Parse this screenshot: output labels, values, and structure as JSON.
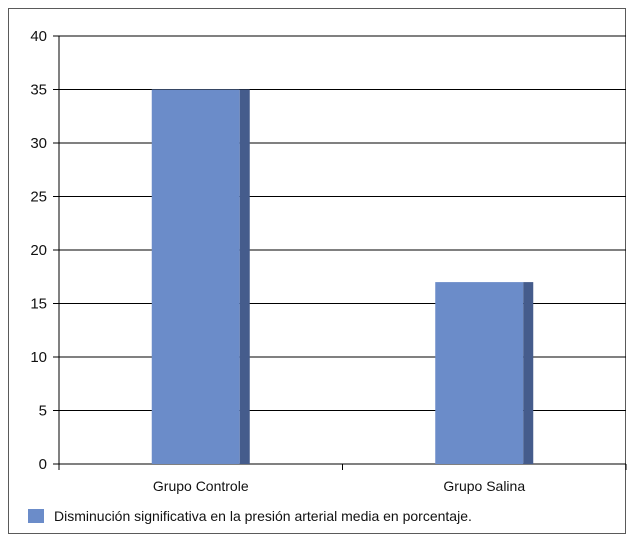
{
  "chart_data": {
    "type": "bar",
    "categories": [
      "Grupo Controle",
      "Grupo Salina"
    ],
    "series": [
      {
        "name": "Disminución significativa en la presión arterial media en porcentaje.",
        "values": [
          35,
          17
        ],
        "color": "#6b8cc9",
        "side_color": "#455c8c"
      }
    ],
    "title": "",
    "xlabel": "",
    "ylabel": "",
    "ylim": [
      0,
      40
    ],
    "yticks": [
      0,
      5,
      10,
      15,
      20,
      25,
      30,
      35,
      40
    ],
    "grid": true,
    "legend_position": "bottom-left"
  }
}
